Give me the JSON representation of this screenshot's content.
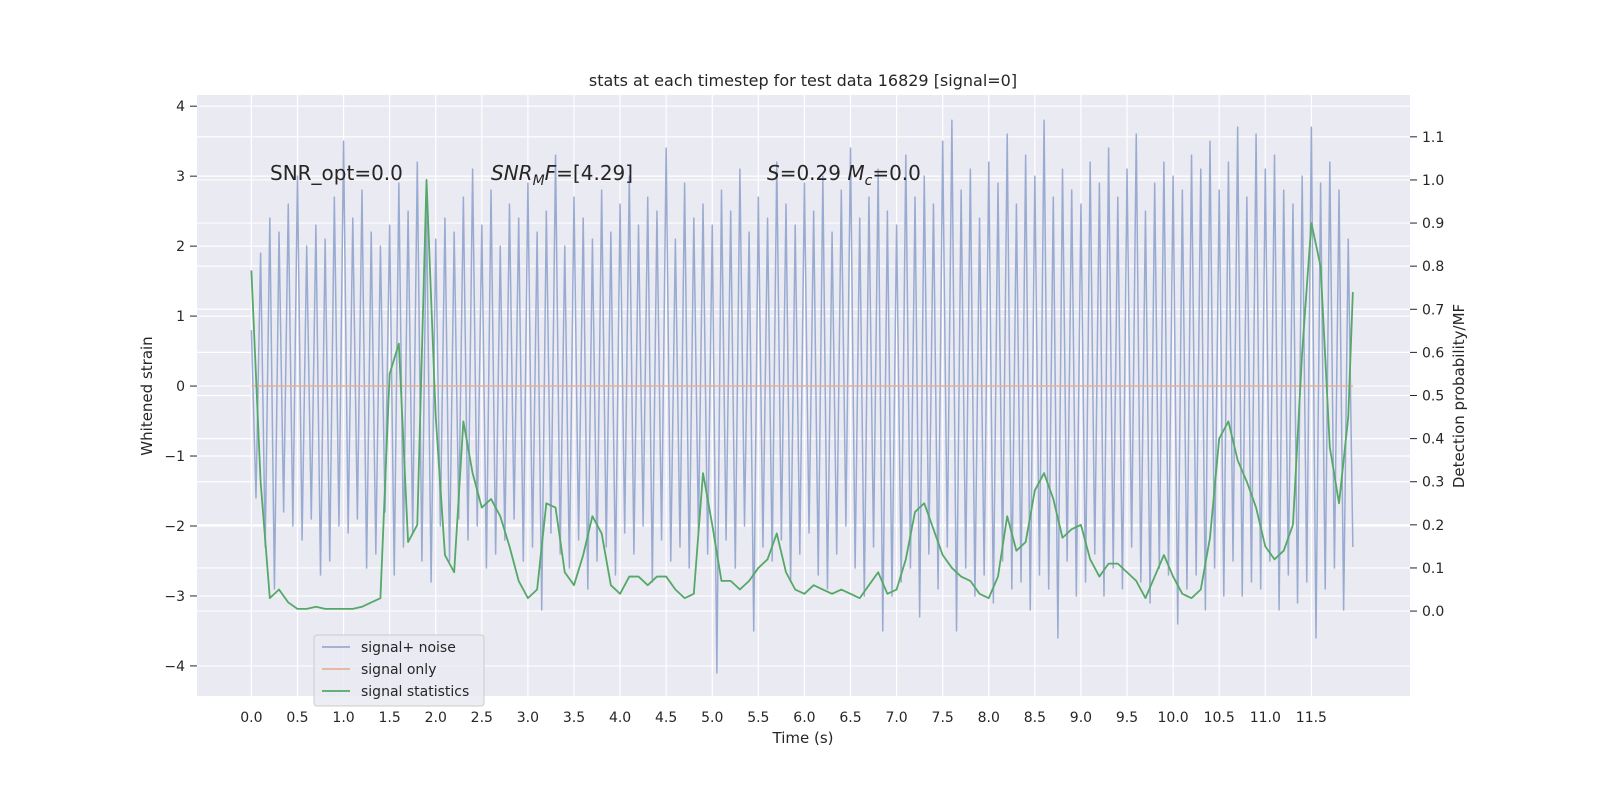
{
  "chart_data": {
    "type": "line",
    "title": "stats at each timestep for test data 16829 [signal=0]",
    "xlabel": "Time (s)",
    "ylabel": "Whitened strain",
    "y2label": "Detection probability/MF",
    "xlim": [
      -0.59,
      12.57
    ],
    "ylim": [
      -4.43,
      4.16
    ],
    "y2lim": [
      -0.197,
      1.197
    ],
    "xticks": [
      {
        "value": 0,
        "label": "0.0"
      },
      0.5,
      {
        "value": 1,
        "label": "1.0"
      },
      1.5,
      {
        "value": 2,
        "label": "2.0"
      },
      2.5,
      {
        "value": 3,
        "label": "3.0"
      },
      3.5,
      {
        "value": 4,
        "label": "4.0"
      },
      4.5,
      {
        "value": 5,
        "label": "5.0"
      },
      5.5,
      {
        "value": 6,
        "label": "6.0"
      },
      6.5,
      {
        "value": 7,
        "label": "7.0"
      },
      7.5,
      {
        "value": 8,
        "label": "8.0"
      },
      8.5,
      {
        "value": 9,
        "label": "9.0"
      },
      9.5,
      {
        "value": 10,
        "label": "10.0"
      },
      10.5,
      {
        "value": 11,
        "label": "11.0"
      },
      11.5
    ],
    "yticks": [
      {
        "value": -4,
        "label": "−4"
      },
      {
        "value": -3,
        "label": "−3"
      },
      {
        "value": -2,
        "label": "−2"
      },
      {
        "value": -1,
        "label": "−1"
      },
      0,
      1,
      2,
      3,
      4
    ],
    "y2ticks": [
      {
        "value": 0,
        "label": "0.0"
      },
      0.1,
      0.2,
      0.3,
      0.4,
      0.5,
      0.6,
      0.7,
      0.8,
      0.9,
      {
        "value": 1,
        "label": "1.0"
      },
      1.1
    ],
    "grid": true,
    "legend": "lower left",
    "annotations": [
      {
        "parts": [
          {
            "text": "SNR_opt=0.0",
            "style": "normal"
          }
        ]
      },
      {
        "parts": [
          {
            "text": "SNR",
            "style": "italic"
          },
          {
            "text": "M",
            "style": "sub-italic"
          },
          {
            "text": "F=[4.29]",
            "style": "italic-first"
          }
        ]
      },
      {
        "parts": [
          {
            "text": "S",
            "style": "italic"
          },
          {
            "text": "=0.29   ",
            "style": "normal"
          },
          {
            "text": "M",
            "style": "italic"
          },
          {
            "text": "c",
            "style": "sub-italic"
          },
          {
            "text": "=0.0",
            "style": "normal"
          }
        ]
      }
    ],
    "series": [
      {
        "name": "signal+ noise",
        "color": "#9aabd1",
        "axis": "y",
        "x": [
          0,
          0.05,
          0.1,
          0.15,
          0.2,
          0.25,
          0.3,
          0.35,
          0.4,
          0.45,
          0.5,
          0.55,
          0.6,
          0.65,
          0.7,
          0.75,
          0.8,
          0.85,
          0.9,
          0.95,
          1,
          1.05,
          1.1,
          1.15,
          1.2,
          1.25,
          1.3,
          1.35,
          1.4,
          1.45,
          1.5,
          1.55,
          1.6,
          1.65,
          1.7,
          1.75,
          1.8,
          1.85,
          1.9,
          1.95,
          2,
          2.05,
          2.1,
          2.15,
          2.2,
          2.25,
          2.3,
          2.35,
          2.4,
          2.45,
          2.5,
          2.55,
          2.6,
          2.65,
          2.7,
          2.75,
          2.8,
          2.85,
          2.9,
          2.95,
          3,
          3.05,
          3.1,
          3.15,
          3.2,
          3.25,
          3.3,
          3.35,
          3.4,
          3.45,
          3.5,
          3.55,
          3.6,
          3.65,
          3.7,
          3.75,
          3.8,
          3.85,
          3.9,
          3.95,
          4,
          4.05,
          4.1,
          4.15,
          4.2,
          4.25,
          4.3,
          4.35,
          4.4,
          4.45,
          4.5,
          4.55,
          4.6,
          4.65,
          4.7,
          4.75,
          4.8,
          4.85,
          4.9,
          4.95,
          5,
          5.05,
          5.1,
          5.15,
          5.2,
          5.25,
          5.3,
          5.35,
          5.4,
          5.45,
          5.5,
          5.55,
          5.6,
          5.65,
          5.7,
          5.75,
          5.8,
          5.85,
          5.9,
          5.95,
          6,
          6.05,
          6.1,
          6.15,
          6.2,
          6.25,
          6.3,
          6.35,
          6.4,
          6.45,
          6.5,
          6.55,
          6.6,
          6.65,
          6.7,
          6.75,
          6.8,
          6.85,
          6.9,
          6.95,
          7,
          7.05,
          7.1,
          7.15,
          7.2,
          7.25,
          7.3,
          7.35,
          7.4,
          7.45,
          7.5,
          7.55,
          7.6,
          7.65,
          7.7,
          7.75,
          7.8,
          7.85,
          7.9,
          7.95,
          8,
          8.05,
          8.1,
          8.15,
          8.2,
          8.25,
          8.3,
          8.35,
          8.4,
          8.45,
          8.5,
          8.55,
          8.6,
          8.65,
          8.7,
          8.75,
          8.8,
          8.85,
          8.9,
          8.95,
          9,
          9.05,
          9.1,
          9.15,
          9.2,
          9.25,
          9.3,
          9.35,
          9.4,
          9.45,
          9.5,
          9.55,
          9.6,
          9.65,
          9.7,
          9.75,
          9.8,
          9.85,
          9.9,
          9.95,
          10,
          10.05,
          10.1,
          10.15,
          10.2,
          10.25,
          10.3,
          10.35,
          10.4,
          10.45,
          10.5,
          10.55,
          10.6,
          10.65,
          10.7,
          10.75,
          10.8,
          10.85,
          10.9,
          10.95,
          11,
          11.05,
          11.1,
          11.15,
          11.2,
          11.25,
          11.3,
          11.35,
          11.4,
          11.45,
          11.5,
          11.55,
          11.6,
          11.65,
          11.7,
          11.75,
          11.8,
          11.85,
          11.9,
          11.95
        ],
        "values": [
          0.8,
          -1.6,
          1.9,
          -2.3,
          2.4,
          -2.9,
          2.2,
          -1.8,
          2.6,
          -2.0,
          3.0,
          -2.2,
          2.0,
          -1.9,
          2.3,
          -2.7,
          2.1,
          -2.5,
          2.7,
          -2.0,
          3.5,
          -2.1,
          2.4,
          -1.9,
          2.8,
          -2.6,
          2.2,
          -2.4,
          2.0,
          -1.8,
          2.3,
          -2.7,
          2.9,
          -2.3,
          2.5,
          -2.1,
          3.2,
          -2.5,
          2.6,
          -2.8,
          2.1,
          -2.0,
          2.4,
          -2.5,
          2.2,
          -1.9,
          2.7,
          -2.2,
          3.1,
          -2.0,
          2.3,
          -2.6,
          2.8,
          -2.4,
          2.0,
          -2.2,
          2.6,
          -1.9,
          2.4,
          -2.5,
          2.9,
          -2.3,
          2.2,
          -3.2,
          2.5,
          -2.1,
          3.3,
          -2.4,
          2.0,
          -2.6,
          2.7,
          -2.2,
          2.4,
          -2.9,
          2.1,
          -2.5,
          2.8,
          -2.3,
          2.2,
          -2.7,
          2.6,
          -2.1,
          3.0,
          -2.4,
          2.3,
          -2.0,
          2.7,
          -2.8,
          2.5,
          -2.2,
          3.4,
          -2.5,
          2.1,
          -2.3,
          2.9,
          -2.6,
          2.4,
          -2.1,
          2.6,
          -2.4,
          2.3,
          -4.1,
          2.8,
          -2.2,
          2.5,
          -2.6,
          3.1,
          -2.0,
          2.2,
          -3.5,
          2.7,
          -2.3,
          2.4,
          -2.5,
          3.2,
          -2.2,
          2.6,
          -2.8,
          2.3,
          -2.4,
          2.9,
          -2.1,
          2.5,
          -2.7,
          3.0,
          -2.9,
          2.2,
          -2.4,
          2.8,
          -2.0,
          3.4,
          -2.6,
          2.4,
          -3.0,
          2.7,
          -2.3,
          3.1,
          -3.5,
          2.5,
          -3.0,
          2.3,
          -2.8,
          3.3,
          -2.6,
          2.7,
          -3.3,
          3.0,
          -2.4,
          2.6,
          -2.9,
          3.5,
          -2.3,
          3.8,
          -3.5,
          2.8,
          -2.6,
          3.1,
          -3.0,
          2.4,
          -2.7,
          3.2,
          -3.1,
          2.9,
          -2.5,
          3.6,
          -2.9,
          2.6,
          -2.8,
          3.3,
          -3.2,
          3.0,
          -2.7,
          3.8,
          -2.9,
          2.7,
          -3.6,
          3.1,
          -2.5,
          2.8,
          -3.0,
          2.6,
          -2.8,
          3.2,
          -2.4,
          2.9,
          -3.0,
          3.4,
          -2.6,
          2.7,
          -2.9,
          3.1,
          -2.3,
          3.6,
          -2.8,
          2.5,
          -3.1,
          2.9,
          -2.6,
          3.2,
          -2.7,
          3.0,
          -3.4,
          2.8,
          -2.9,
          3.3,
          -2.7,
          3.1,
          -3.2,
          3.5,
          -2.6,
          2.8,
          -3.0,
          3.2,
          -2.5,
          3.7,
          -3.0,
          2.7,
          -2.8,
          3.6,
          -2.9,
          3.1,
          -2.5,
          3.3,
          -3.2,
          2.8,
          -2.7,
          2.6,
          -3.1,
          3.0,
          -2.8,
          3.7,
          -3.6,
          2.9,
          -2.9,
          3.2,
          -2.6,
          2.8,
          -3.2,
          2.1,
          -2.3
        ]
      },
      {
        "name": "signal only",
        "color": "#e5b29a",
        "axis": "y",
        "x": [
          0,
          11.95
        ],
        "values": [
          0,
          0
        ]
      },
      {
        "name": "signal statistics",
        "color": "#55a868",
        "axis": "y2",
        "x": [
          0,
          0.1,
          0.2,
          0.3,
          0.4,
          0.5,
          0.6,
          0.7,
          0.8,
          0.9,
          1,
          1.1,
          1.2,
          1.3,
          1.4,
          1.5,
          1.6,
          1.7,
          1.8,
          1.9,
          2,
          2.1,
          2.2,
          2.3,
          2.4,
          2.5,
          2.6,
          2.7,
          2.8,
          2.9,
          3,
          3.1,
          3.2,
          3.3,
          3.4,
          3.5,
          3.6,
          3.7,
          3.8,
          3.9,
          4,
          4.1,
          4.2,
          4.3,
          4.4,
          4.5,
          4.6,
          4.7,
          4.8,
          4.9,
          5,
          5.1,
          5.2,
          5.3,
          5.4,
          5.5,
          5.6,
          5.7,
          5.8,
          5.9,
          6,
          6.1,
          6.2,
          6.3,
          6.4,
          6.5,
          6.6,
          6.7,
          6.8,
          6.9,
          7,
          7.1,
          7.2,
          7.3,
          7.4,
          7.5,
          7.6,
          7.7,
          7.8,
          7.9,
          8,
          8.1,
          8.2,
          8.3,
          8.4,
          8.5,
          8.6,
          8.7,
          8.8,
          8.9,
          9,
          9.1,
          9.2,
          9.3,
          9.4,
          9.5,
          9.6,
          9.7,
          9.8,
          9.9,
          10,
          10.1,
          10.2,
          10.3,
          10.4,
          10.5,
          10.6,
          10.7,
          10.8,
          10.9,
          11,
          11.1,
          11.2,
          11.3,
          11.4,
          11.5,
          11.6,
          11.7,
          11.8,
          11.9,
          11.95
        ],
        "values": [
          0.79,
          0.3,
          0.03,
          0.05,
          0.02,
          0.005,
          0.005,
          0.01,
          0.005,
          0.005,
          0.005,
          0.005,
          0.01,
          0.02,
          0.03,
          0.55,
          0.62,
          0.16,
          0.2,
          1.0,
          0.45,
          0.13,
          0.09,
          0.44,
          0.32,
          0.24,
          0.26,
          0.22,
          0.15,
          0.07,
          0.03,
          0.05,
          0.25,
          0.24,
          0.09,
          0.06,
          0.13,
          0.22,
          0.18,
          0.06,
          0.04,
          0.08,
          0.08,
          0.06,
          0.08,
          0.08,
          0.05,
          0.03,
          0.04,
          0.32,
          0.2,
          0.07,
          0.07,
          0.05,
          0.07,
          0.1,
          0.12,
          0.18,
          0.09,
          0.05,
          0.04,
          0.06,
          0.05,
          0.04,
          0.05,
          0.04,
          0.03,
          0.06,
          0.09,
          0.04,
          0.05,
          0.12,
          0.23,
          0.25,
          0.19,
          0.13,
          0.1,
          0.08,
          0.07,
          0.04,
          0.03,
          0.08,
          0.22,
          0.14,
          0.16,
          0.28,
          0.32,
          0.26,
          0.17,
          0.19,
          0.2,
          0.12,
          0.08,
          0.11,
          0.11,
          0.09,
          0.07,
          0.03,
          0.08,
          0.13,
          0.08,
          0.04,
          0.03,
          0.05,
          0.17,
          0.4,
          0.44,
          0.35,
          0.3,
          0.24,
          0.15,
          0.12,
          0.14,
          0.2,
          0.6,
          0.9,
          0.8,
          0.38,
          0.25,
          0.45,
          0.74
        ]
      }
    ]
  }
}
